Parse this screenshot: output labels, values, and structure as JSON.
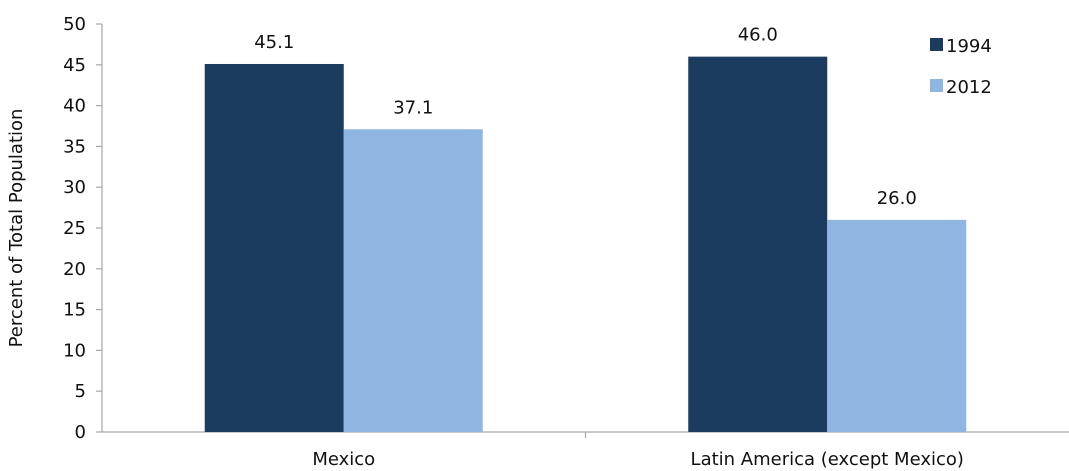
{
  "chart_data": {
    "type": "bar",
    "title": "",
    "xlabel": "",
    "ylabel": "Percent of Total Population",
    "categories": [
      "Mexico",
      "Latin America (except Mexico)"
    ],
    "series": [
      {
        "name": "1994",
        "values": [
          45.1,
          46.0
        ],
        "labels": [
          "45.1",
          "46.0"
        ],
        "color": "#1b3c5e"
      },
      {
        "name": "2012",
        "values": [
          37.1,
          26.0
        ],
        "labels": [
          "37.1",
          "26.0"
        ],
        "color": "#8fb6e0"
      }
    ],
    "ylim": [
      0,
      50
    ],
    "yticks": [
      0,
      5,
      10,
      15,
      20,
      25,
      30,
      35,
      40,
      45,
      50
    ],
    "grid": false,
    "legend_position": "top-right",
    "axis_color": "#a6a6a6"
  }
}
